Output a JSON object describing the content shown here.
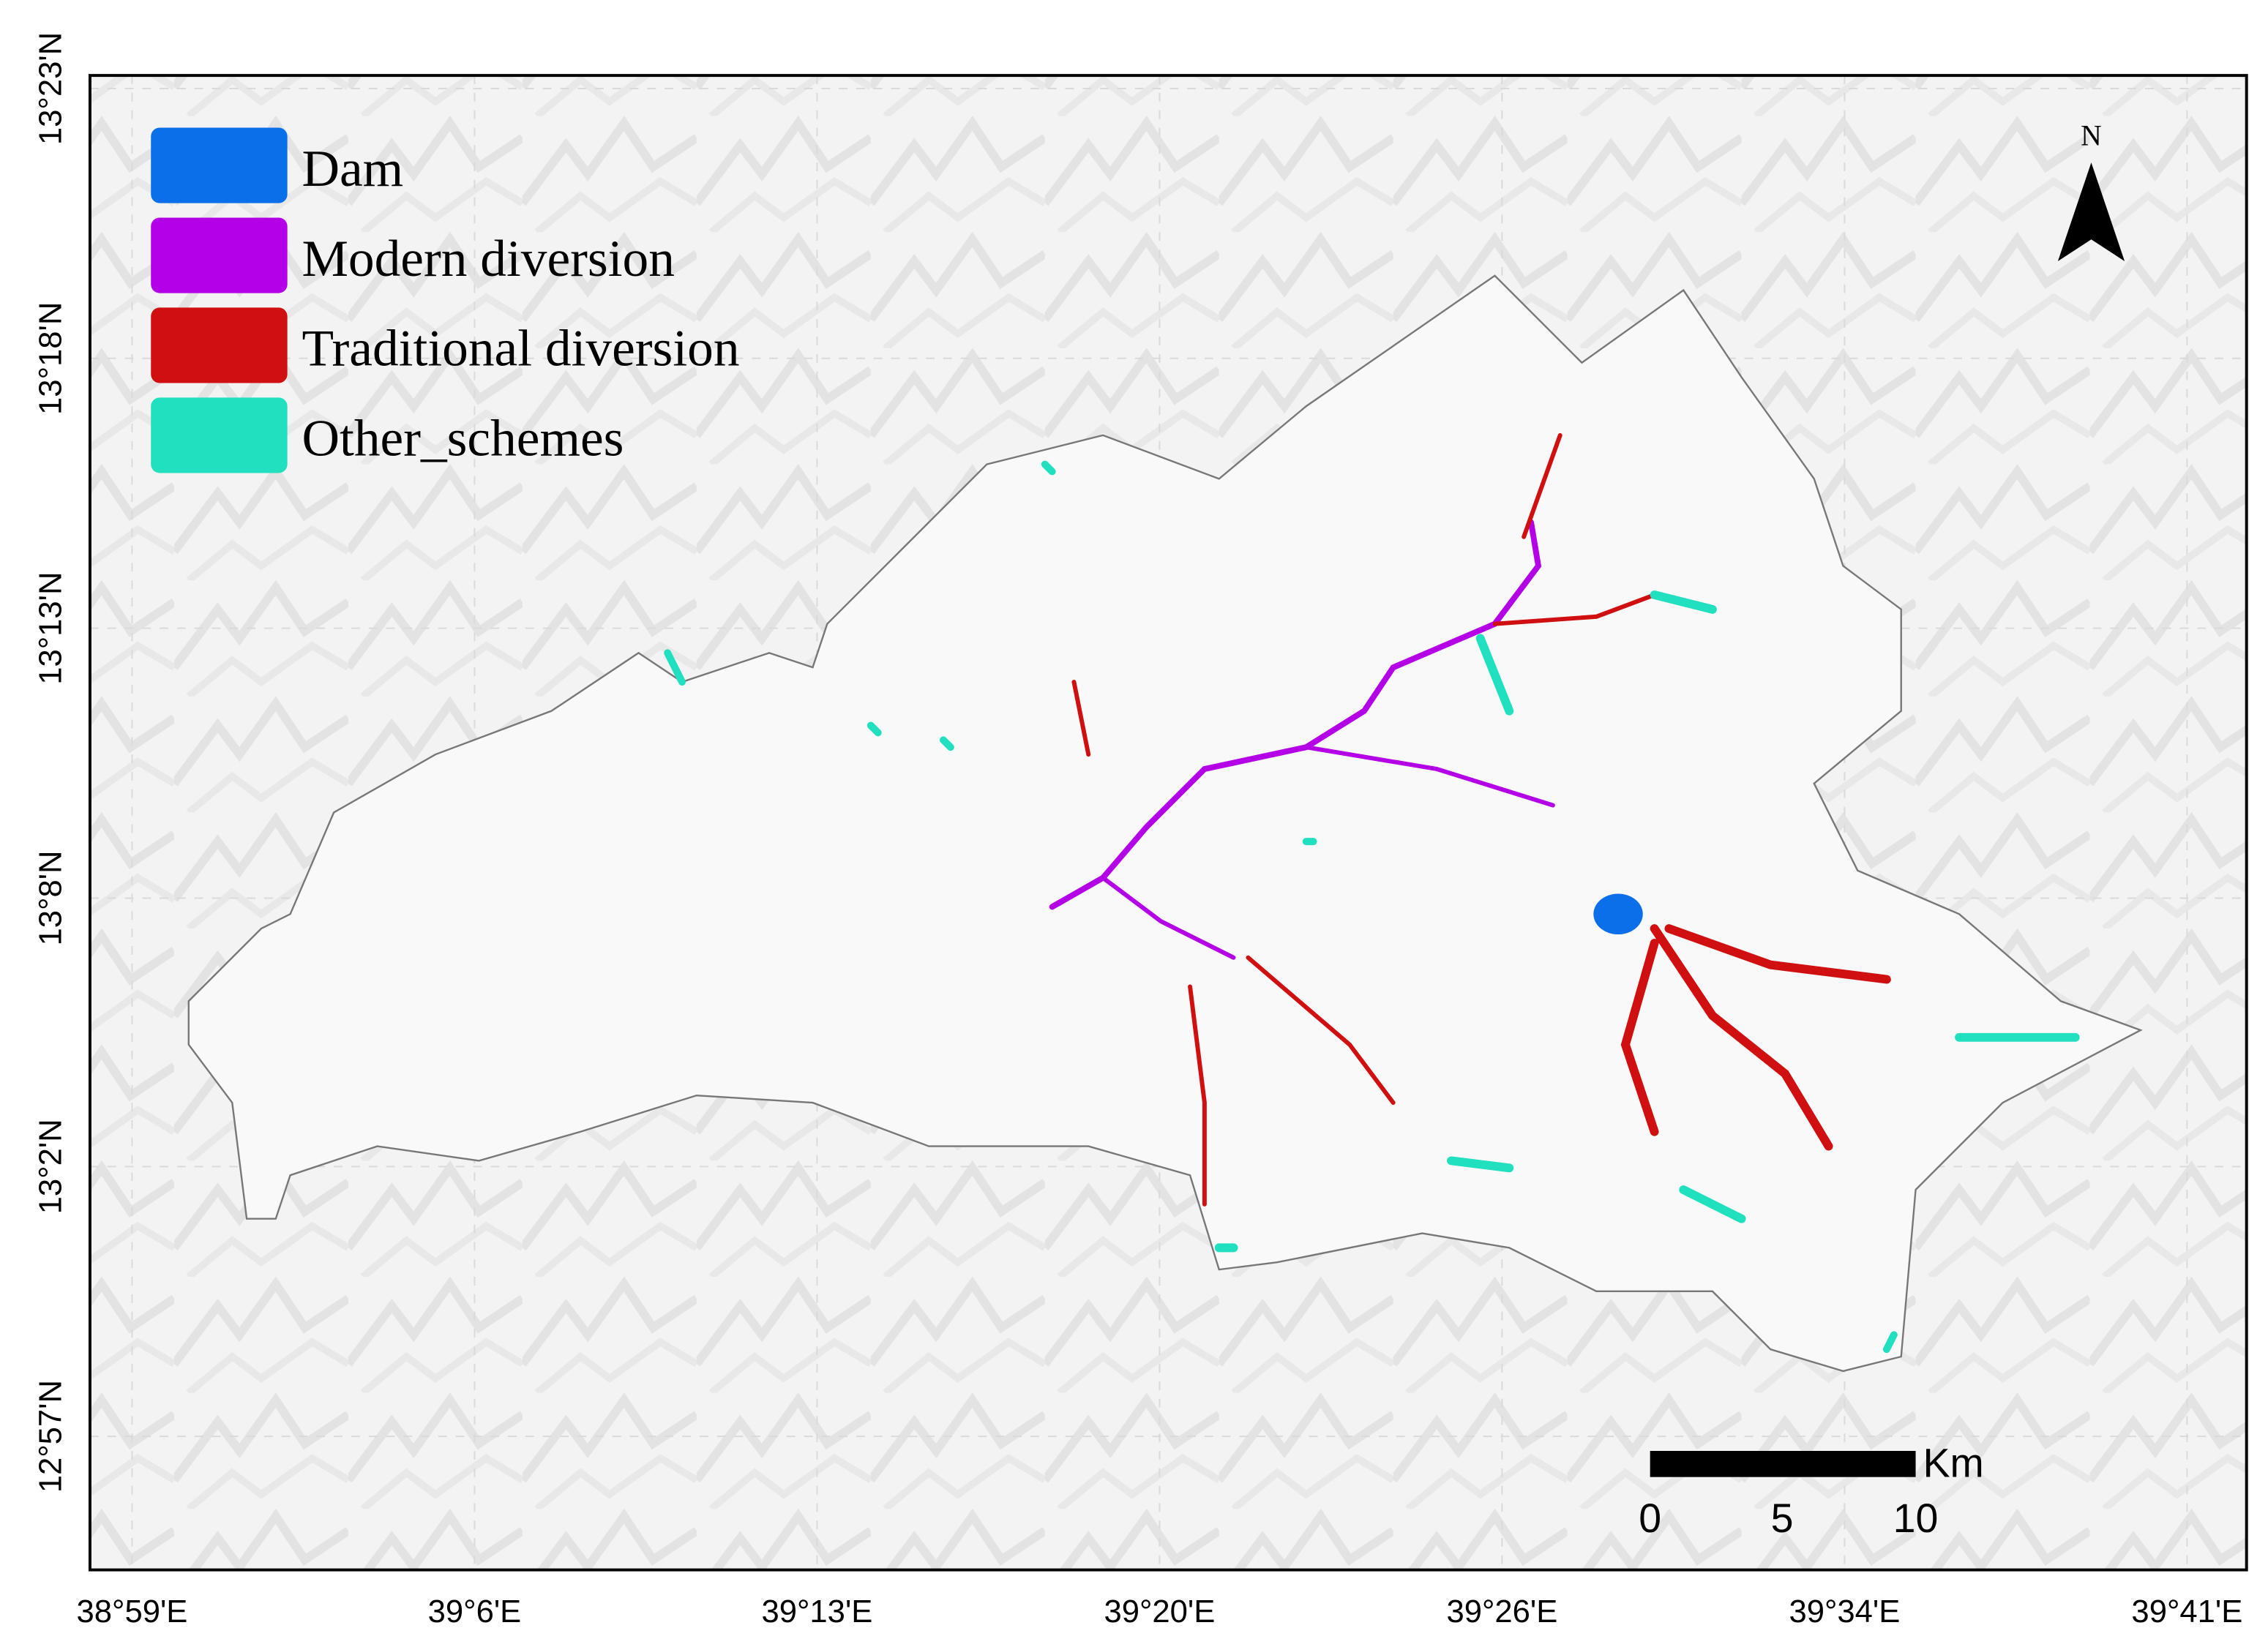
{
  "map": {
    "legend": [
      "Dam",
      "Modern diversion",
      "Traditional diversion",
      "Other_schemes"
    ],
    "x_ticks": [
      "38°59'E",
      "39°6'E",
      "39°13'E",
      "39°20'E",
      "39°26'E",
      "39°34'E",
      "39°41'E"
    ],
    "y_ticks": [
      "13°23'N",
      "13°18'N",
      "13°13'N",
      "13°8'N",
      "13°2'N",
      "12°57'N"
    ],
    "north": "N",
    "scale_bar": {
      "unit": "Km",
      "labels": [
        0,
        5,
        10
      ]
    }
  }
}
